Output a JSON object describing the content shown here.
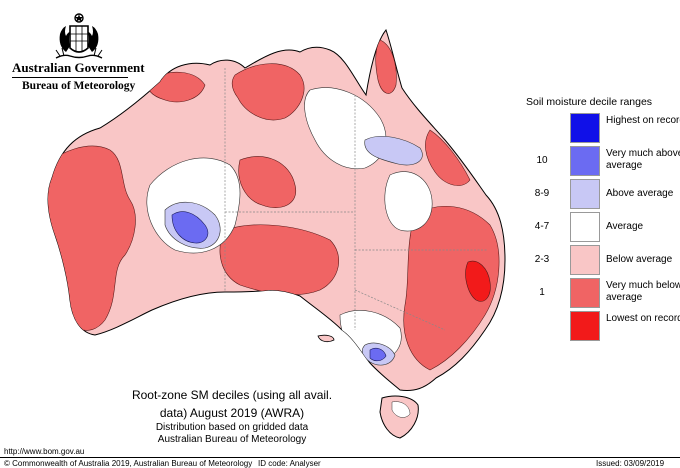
{
  "header": {
    "government": "Australian Government",
    "bureau": "Bureau of Meteorology"
  },
  "legend": {
    "title": "Soil moisture decile ranges",
    "items": [
      {
        "code": "",
        "label": "Highest on record",
        "color": "#1010e8"
      },
      {
        "code": "10",
        "label": "Very much above average",
        "color": "#6b6bf2"
      },
      {
        "code": "8-9",
        "label": "Above average",
        "color": "#c8c8f5"
      },
      {
        "code": "4-7",
        "label": "Average",
        "color": "#ffffff"
      },
      {
        "code": "2-3",
        "label": "Below average",
        "color": "#f9c6c6"
      },
      {
        "code": "1",
        "label": "Very much below average",
        "color": "#f06464"
      },
      {
        "code": "",
        "label": "Lowest on record",
        "color": "#f21a1a"
      }
    ]
  },
  "map_title": {
    "line1": "Root-zone SM deciles (using all avail.",
    "line2": "data) August 2019 (AWRA)",
    "line3": "Distribution based on gridded data",
    "line4": "Australian Bureau of Meteorology"
  },
  "footer": {
    "url": "http://www.bom.gov.au",
    "copyright": "© Commonwealth of Australia 2019, Australian Bureau of Meteorology",
    "id_code": "ID code: Analyser",
    "issued": "Issued: 03/09/2019"
  }
}
